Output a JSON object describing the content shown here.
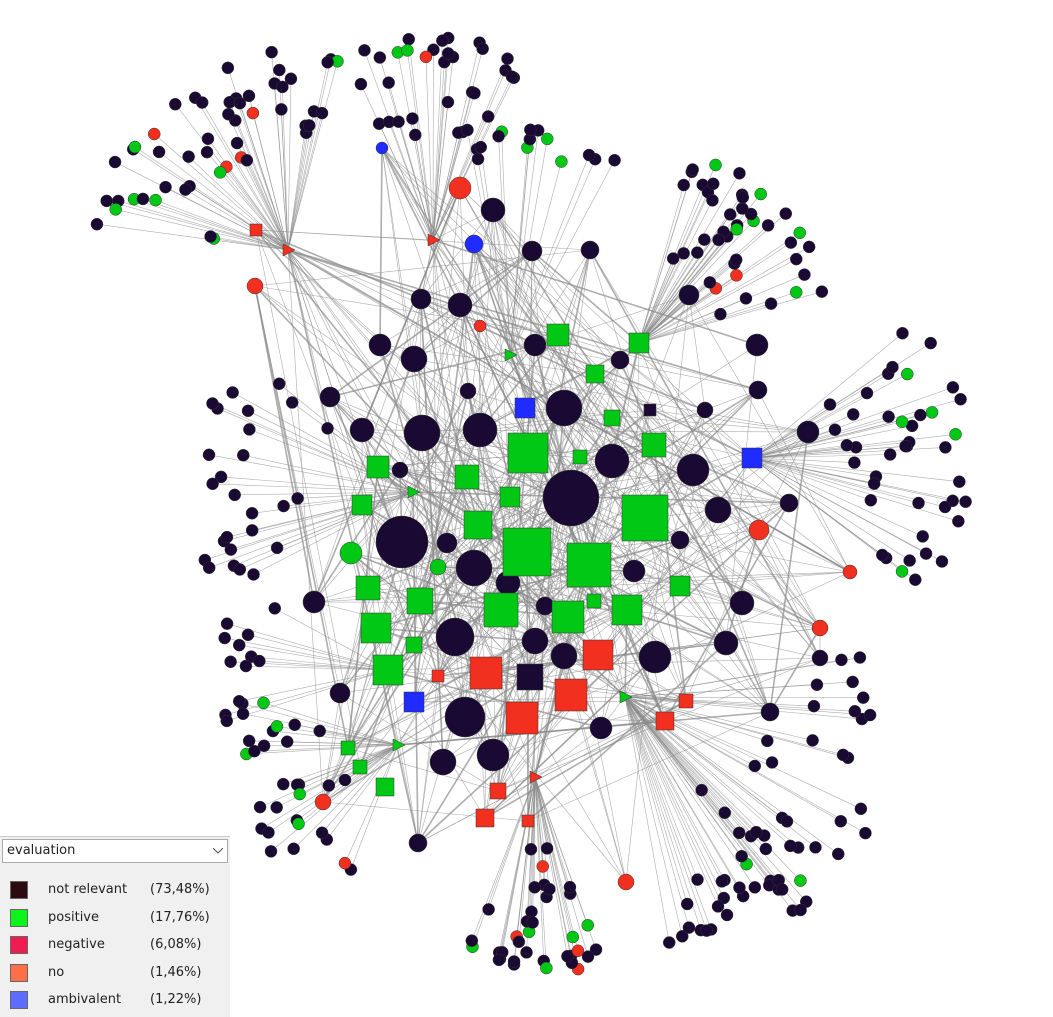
{
  "legend": {
    "attribute": "evaluation",
    "items": [
      {
        "label": "not relevant",
        "share": "(73,48%)",
        "color": "#2b0a14"
      },
      {
        "label": "positive",
        "share": "(17,76%)",
        "color": "#0cf41c"
      },
      {
        "label": "negative",
        "share": "(6,08%)",
        "color": "#ee1c50"
      },
      {
        "label": "no",
        "share": "(1,46%)",
        "color": "#ff7048"
      },
      {
        "label": "ambivalent",
        "share": "(1,22%)",
        "color": "#5b6cff"
      }
    ]
  }
}
